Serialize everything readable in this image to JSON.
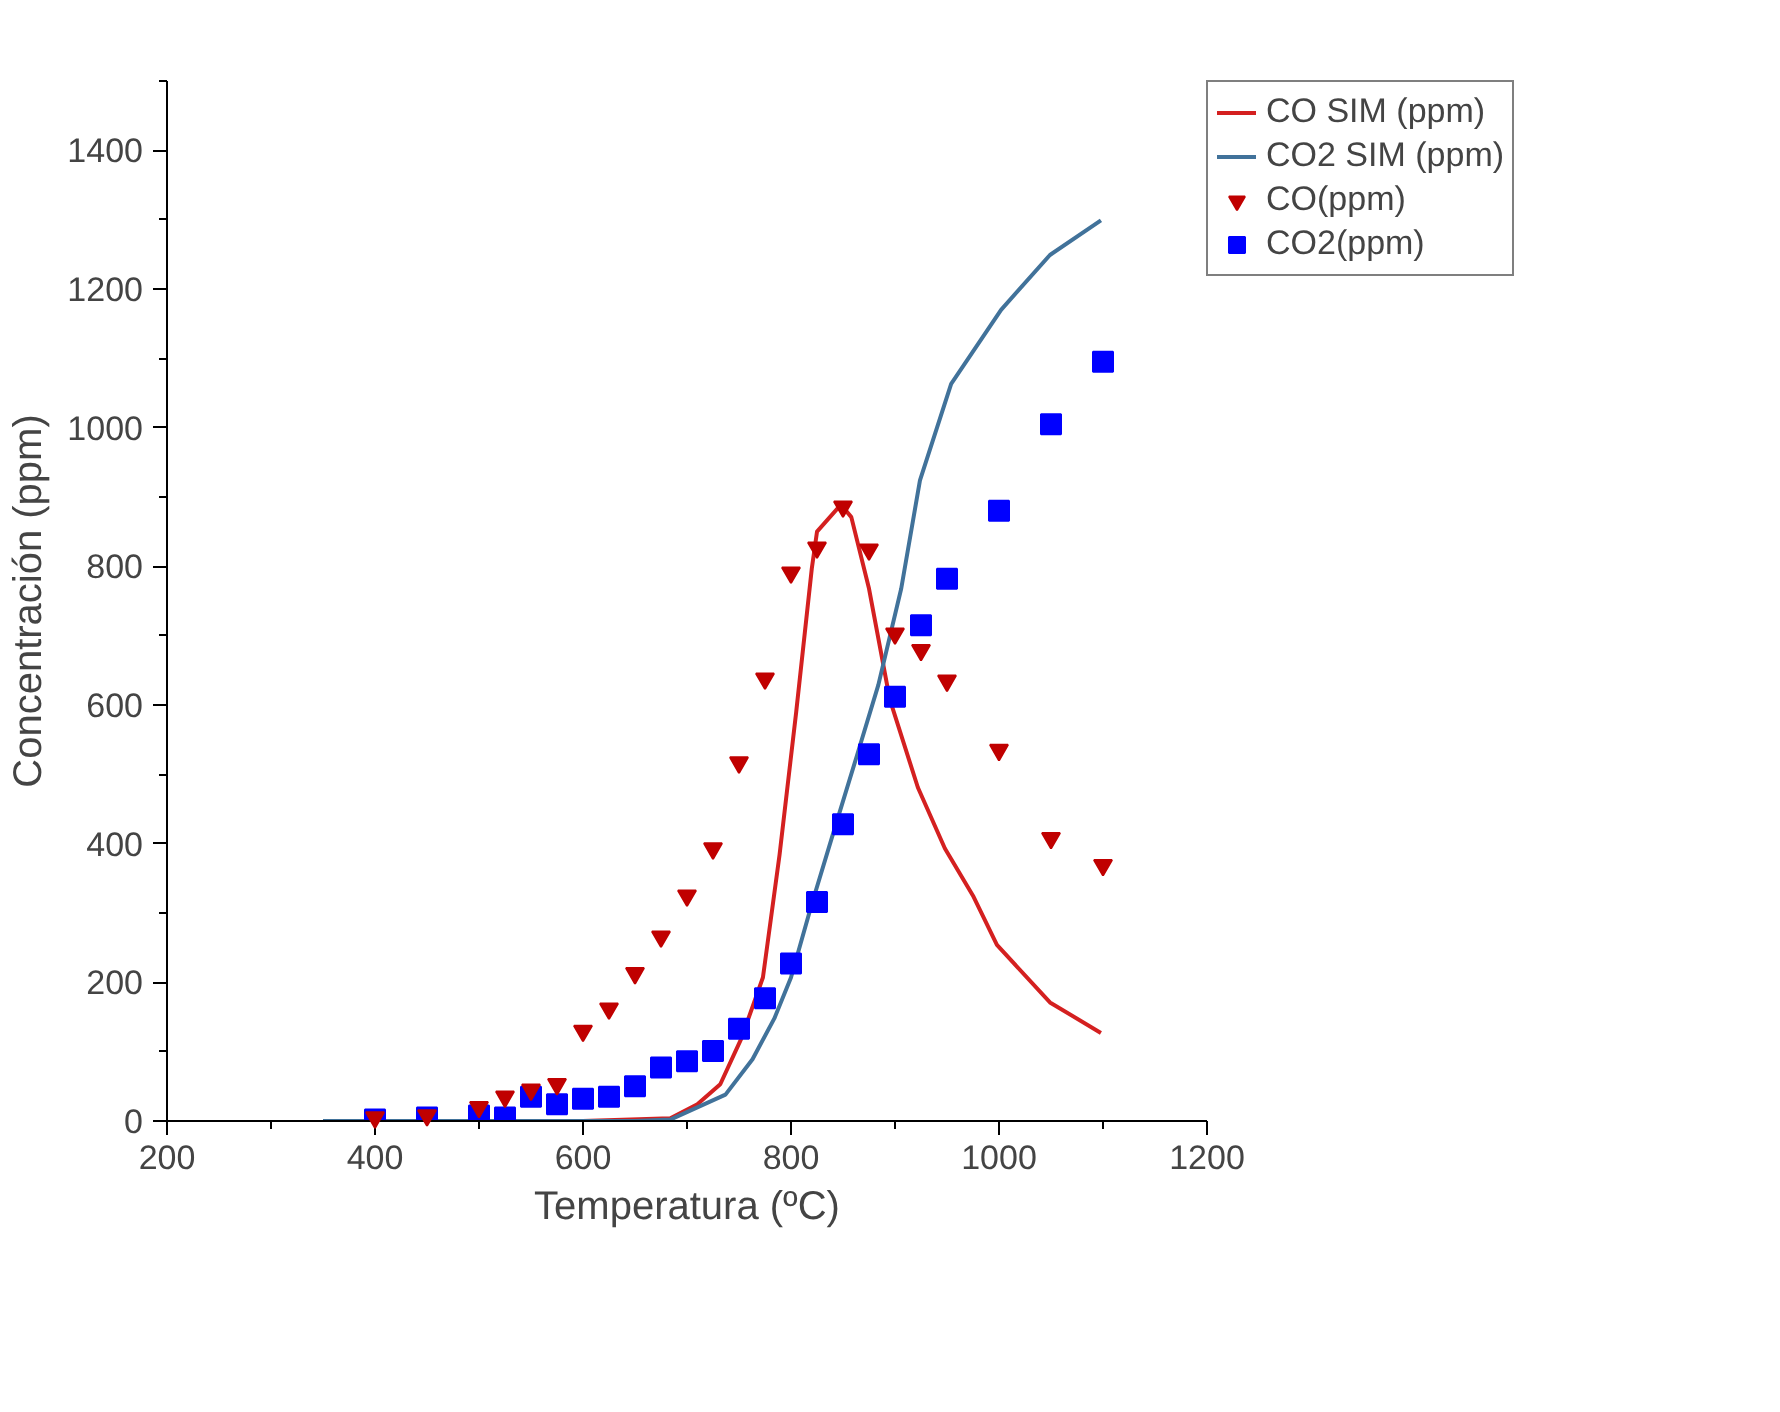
{
  "chart_data": {
    "type": "line",
    "xlabel": "Temperatura (ºC)",
    "ylabel": "Concentración (ppm)",
    "xlim": [
      200,
      1200
    ],
    "ylim": [
      0,
      1500
    ],
    "xticks": [
      200,
      400,
      600,
      800,
      1000,
      1200
    ],
    "yticks": [
      0,
      200,
      400,
      600,
      800,
      1000,
      1200,
      1400
    ],
    "grid": false,
    "legend": "top right",
    "series": [
      {
        "name": "CO SIM (ppm)",
        "color": "#d42020",
        "marker": "none",
        "line_style": "solid",
        "x": [
          350,
          600,
          684,
          710,
          732,
          752,
          773,
          789,
          805,
          820,
          825,
          848,
          858,
          875,
          895,
          922,
          948,
          975,
          998,
          1049,
          1098
        ],
        "values": [
          0,
          0,
          4,
          24,
          53,
          118,
          207,
          384,
          590,
          797,
          850,
          889,
          871,
          768,
          608,
          481,
          393,
          325,
          254,
          171,
          127
        ]
      },
      {
        "name": "CO2 SIM (ppm)",
        "color": "#41729a",
        "marker": "none",
        "line_style": "solid",
        "x": [
          350,
          650,
          684,
          737,
          763,
          784,
          800,
          820,
          842,
          863,
          884,
          906,
          924,
          954,
          1002,
          1049,
          1098
        ],
        "values": [
          0,
          0,
          2,
          38,
          89,
          148,
          207,
          313,
          422,
          525,
          629,
          768,
          924,
          1063,
          1170,
          1249,
          1299
        ]
      },
      {
        "name": "CO(ppm)",
        "type": "scatter",
        "color": "#c00000",
        "marker": "triangle",
        "x": [
          400,
          450,
          500,
          525,
          550,
          575,
          600,
          625,
          650,
          675,
          700,
          725,
          750,
          775,
          800,
          825,
          850,
          875,
          900,
          925,
          950,
          1000,
          1050,
          1100
        ],
        "values": [
          5,
          8,
          20,
          35,
          45,
          53,
          130,
          162,
          213,
          266,
          325,
          393,
          517,
          638,
          791,
          827,
          886,
          824,
          703,
          679,
          635,
          535,
          408,
          369
        ]
      },
      {
        "name": "CO2(ppm)",
        "type": "scatter",
        "color": "#0000ff",
        "marker": "square",
        "x": [
          400,
          450,
          500,
          525,
          550,
          575,
          600,
          625,
          650,
          675,
          700,
          725,
          750,
          775,
          800,
          825,
          850,
          875,
          900,
          925,
          950,
          1000,
          1050,
          1100
        ],
        "values": [
          2,
          5,
          8,
          5,
          35,
          24,
          32,
          35,
          50,
          77,
          86,
          101,
          133,
          177,
          227,
          316,
          428,
          529,
          612,
          715,
          782,
          880,
          1005,
          1095
        ]
      }
    ]
  }
}
